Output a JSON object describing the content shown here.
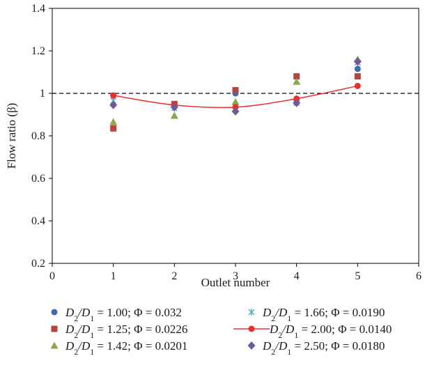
{
  "chart_data": {
    "type": "scatter",
    "xlabel": "Outlet number",
    "ylabel": "Flow ratio (β)",
    "xlim": [
      0,
      6
    ],
    "ylim": [
      0.2,
      1.4
    ],
    "xticks": [
      "0",
      "1",
      "2",
      "3",
      "4",
      "5",
      "6"
    ],
    "yticks": [
      "0.2",
      "0.4",
      "0.6",
      "0.8",
      "1",
      "1.2",
      "1.4"
    ],
    "grid": false,
    "reference_line": {
      "y": 1.0,
      "style": "dashed",
      "color": "#000000"
    },
    "legend_position": "bottom",
    "series": [
      {
        "name": "D2/D1 = 1.00; Φ = 0.032",
        "d_ratio": "1.00",
        "phi": "0.032",
        "marker": "circle",
        "color": "#3a6ea8",
        "x": [
          1,
          2,
          3,
          4,
          5
        ],
        "values": [
          0.99,
          0.94,
          1.0,
          0.97,
          1.115
        ]
      },
      {
        "name": "D2/D1 = 1.25; Φ = 0.0226",
        "d_ratio": "1.25",
        "phi": "0.0226",
        "marker": "square",
        "color": "#b5453f",
        "x": [
          1,
          2,
          3,
          4,
          5
        ],
        "values": [
          0.835,
          0.95,
          1.015,
          1.08,
          1.08
        ]
      },
      {
        "name": "D2/D1 = 1.42; Φ = 0.0201",
        "d_ratio": "1.42",
        "phi": "0.0201",
        "marker": "triangle",
        "color": "#8aa84a",
        "x": [
          1,
          2,
          3,
          4,
          5
        ],
        "values": [
          0.865,
          0.895,
          0.96,
          1.055,
          1.16
        ]
      },
      {
        "name": "D2/D1 = 1.66; Φ = 0.0190",
        "d_ratio": "1.66",
        "phi": "0.0190",
        "marker": "asterisk",
        "color": "#4aa6b8",
        "x": [
          1,
          2,
          3,
          4,
          5
        ],
        "values": [
          0.965,
          0.93,
          0.925,
          0.955,
          1.145
        ]
      },
      {
        "name": "D2/D1 = 2.00; Φ = 0.0140",
        "d_ratio": "2.00",
        "phi": "0.0140",
        "marker": "circle-line",
        "color": "#e8302a",
        "x": [
          1,
          2,
          3,
          4,
          5
        ],
        "values": [
          0.99,
          0.945,
          0.935,
          0.975,
          1.035
        ]
      },
      {
        "name": "D2/D1 = 2.50; Φ = 0.0180",
        "d_ratio": "2.50",
        "phi": "0.0180",
        "marker": "diamond",
        "color": "#6f5a98",
        "x": [
          1,
          2,
          3,
          4,
          5
        ],
        "values": [
          0.945,
          0.935,
          0.915,
          0.955,
          1.15
        ]
      }
    ]
  }
}
